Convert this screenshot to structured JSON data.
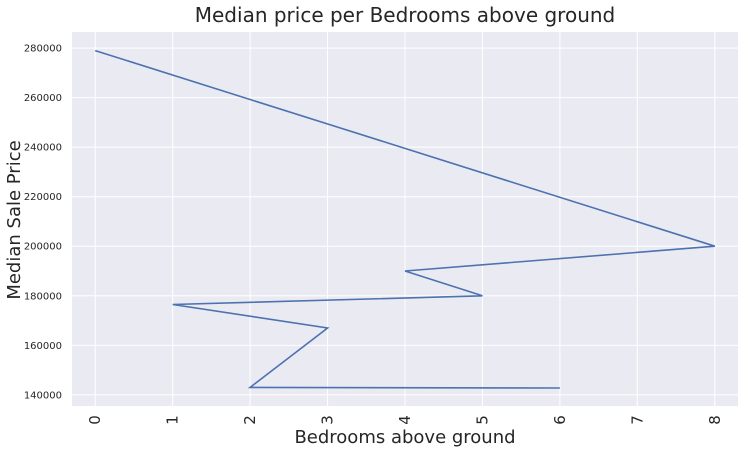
{
  "chart_data": {
    "type": "line",
    "title": "Median price per Bedrooms above ground",
    "xlabel": "Bedrooms above ground",
    "ylabel": "Median Sale Price",
    "x": [
      0,
      8,
      4,
      5,
      1,
      3,
      2,
      6
    ],
    "y": [
      279000,
      200000,
      190000,
      180000,
      176500,
      167000,
      143000,
      142750
    ],
    "xlim": [
      -0.3,
      8.3
    ],
    "ylim": [
      135500,
      286500
    ],
    "xticks": [
      "0",
      "1",
      "2",
      "3",
      "4",
      "5",
      "6",
      "7",
      "8"
    ],
    "yticks": [
      "140000",
      "160000",
      "180000",
      "200000",
      "220000",
      "240000",
      "260000",
      "280000"
    ],
    "grid": true,
    "legend": "none",
    "line_color": "#4c72b0",
    "background_color": "#eaeaf2",
    "grid_color": "#ffffff"
  }
}
